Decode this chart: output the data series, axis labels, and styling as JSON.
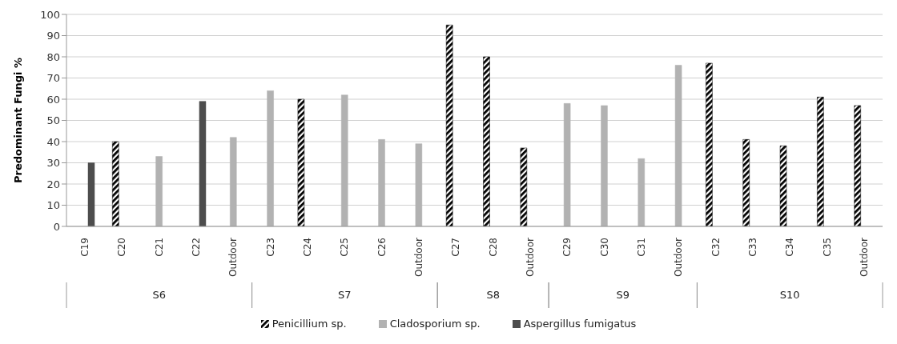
{
  "chart_data": {
    "type": "bar",
    "ylabel": "Predominant Fungi %",
    "categories": [
      "C19",
      "C20",
      "C21",
      "C22",
      "Outdoor",
      "C23",
      "C24",
      "C25",
      "C26",
      "Outdoor",
      "C27",
      "C28",
      "Outdoor",
      "C29",
      "C30",
      "C31",
      "Outdoor",
      "C32",
      "C33",
      "C34",
      "C35",
      "Outdoor"
    ],
    "series": [
      {
        "name": "Penicillium sp.",
        "color": "#000000",
        "values": [
          null,
          40,
          null,
          null,
          null,
          null,
          60,
          null,
          null,
          null,
          95,
          80,
          37,
          null,
          null,
          null,
          null,
          77,
          41,
          38,
          61,
          57
        ]
      },
      {
        "name": "Cladosporium sp.",
        "color": "#b2b2b2",
        "values": [
          null,
          null,
          33,
          null,
          42,
          64,
          null,
          62,
          41,
          39,
          null,
          null,
          null,
          58,
          57,
          32,
          76,
          null,
          null,
          null,
          null,
          null
        ]
      },
      {
        "name": "Aspergillus fumigatus",
        "color": "#4d4d4d",
        "values": [
          30,
          null,
          null,
          59,
          null,
          null,
          null,
          null,
          null,
          null,
          null,
          null,
          null,
          null,
          null,
          null,
          null,
          null,
          null,
          null,
          null,
          null
        ]
      }
    ],
    "ylim": [
      0,
      100
    ],
    "yticks": [
      0,
      10,
      20,
      30,
      40,
      50,
      60,
      70,
      80,
      90,
      100
    ],
    "grid": "y",
    "legend": "bottom",
    "annotations": [
      "S6",
      "S7",
      "S8",
      "S9",
      "S10"
    ]
  }
}
